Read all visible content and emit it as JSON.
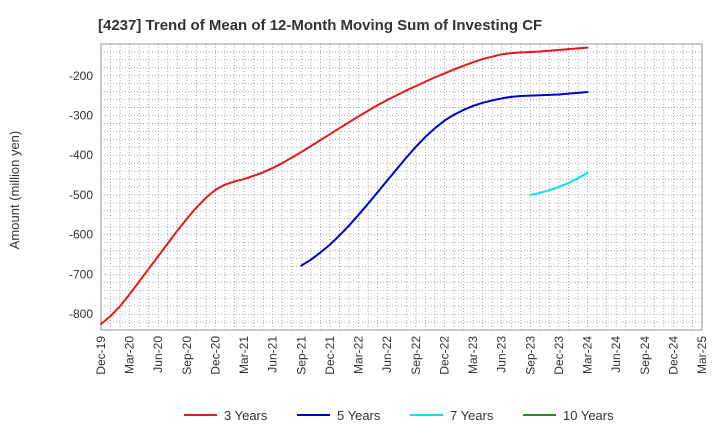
{
  "chart_data": {
    "type": "line",
    "title": "[4237]  Trend of Mean of 12-Month Moving Sum of Investing CF",
    "xlabel": "",
    "ylabel": "Amount (million yen)",
    "x_ticks": [
      "Dec-19",
      "Mar-20",
      "Jun-20",
      "Sep-20",
      "Dec-20",
      "Mar-21",
      "Jun-21",
      "Sep-21",
      "Dec-21",
      "Mar-22",
      "Jun-22",
      "Sep-22",
      "Dec-22",
      "Mar-23",
      "Jun-23",
      "Sep-23",
      "Dec-23",
      "Mar-24",
      "Jun-24",
      "Sep-24",
      "Dec-24",
      "Mar-25"
    ],
    "y_ticks": [
      -800,
      -700,
      -600,
      -500,
      -400,
      -300,
      -200
    ],
    "ylim": [
      -840,
      -120
    ],
    "grid": true,
    "legend_position": "bottom",
    "series": [
      {
        "name": "3 Years",
        "color": "#e31a1c",
        "x": [
          "Dec-19",
          "Jan-20",
          "Feb-20",
          "Mar-20",
          "Apr-20",
          "May-20",
          "Jun-20",
          "Jul-20",
          "Aug-20",
          "Sep-20",
          "Oct-20",
          "Nov-20",
          "Dec-20",
          "Jan-21",
          "Feb-21",
          "Mar-21",
          "Apr-21",
          "May-21",
          "Jun-21",
          "Jul-21",
          "Aug-21",
          "Sep-21",
          "Oct-21",
          "Nov-21",
          "Dec-21",
          "Jan-22",
          "Feb-22",
          "Mar-22",
          "Apr-22",
          "May-22",
          "Jun-22",
          "Jul-22",
          "Aug-22",
          "Sep-22",
          "Oct-22",
          "Nov-22",
          "Dec-22",
          "Jan-23",
          "Feb-23",
          "Mar-23",
          "Apr-23",
          "May-23",
          "Jun-23",
          "Jul-23",
          "Aug-23",
          "Sep-23",
          "Oct-23",
          "Nov-23",
          "Dec-23",
          "Jan-24",
          "Feb-24",
          "Mar-24"
        ],
        "values": [
          -825,
          -805,
          -780,
          -750,
          -718,
          -686,
          -654,
          -622,
          -590,
          -560,
          -532,
          -507,
          -487,
          -474,
          -466,
          -460,
          -452,
          -443,
          -432,
          -420,
          -406,
          -392,
          -377,
          -362,
          -347,
          -332,
          -317,
          -302,
          -288,
          -274,
          -261,
          -249,
          -237,
          -226,
          -215,
          -204,
          -194,
          -184,
          -175,
          -166,
          -158,
          -152,
          -146,
          -143,
          -141,
          -140,
          -139,
          -137,
          -135,
          -133,
          -131,
          -129
        ]
      },
      {
        "name": "5 Years",
        "color": "#0000cc",
        "x": [
          "Sep-21",
          "Oct-21",
          "Nov-21",
          "Dec-21",
          "Jan-22",
          "Feb-22",
          "Mar-22",
          "Apr-22",
          "May-22",
          "Jun-22",
          "Jul-22",
          "Aug-22",
          "Sep-22",
          "Oct-22",
          "Nov-22",
          "Dec-22",
          "Jan-23",
          "Feb-23",
          "Mar-23",
          "Apr-23",
          "May-23",
          "Jun-23",
          "Jul-23",
          "Aug-23",
          "Sep-23",
          "Oct-23",
          "Nov-23",
          "Dec-23",
          "Jan-24",
          "Feb-24",
          "Mar-24"
        ],
        "values": [
          -678,
          -663,
          -645,
          -625,
          -602,
          -577,
          -550,
          -522,
          -493,
          -464,
          -435,
          -406,
          -379,
          -354,
          -332,
          -313,
          -298,
          -286,
          -276,
          -268,
          -262,
          -257,
          -253,
          -251,
          -250,
          -249,
          -248,
          -247,
          -245,
          -243,
          -241
        ]
      },
      {
        "name": "7 Years",
        "color": "#00e5ee",
        "x": [
          "Sep-23",
          "Oct-23",
          "Nov-23",
          "Dec-23",
          "Jan-24",
          "Feb-24",
          "Mar-24"
        ],
        "values": [
          -500,
          -495,
          -488,
          -480,
          -470,
          -458,
          -444
        ]
      },
      {
        "name": "10 Years",
        "color": "#228b22",
        "x": [],
        "values": []
      }
    ]
  }
}
